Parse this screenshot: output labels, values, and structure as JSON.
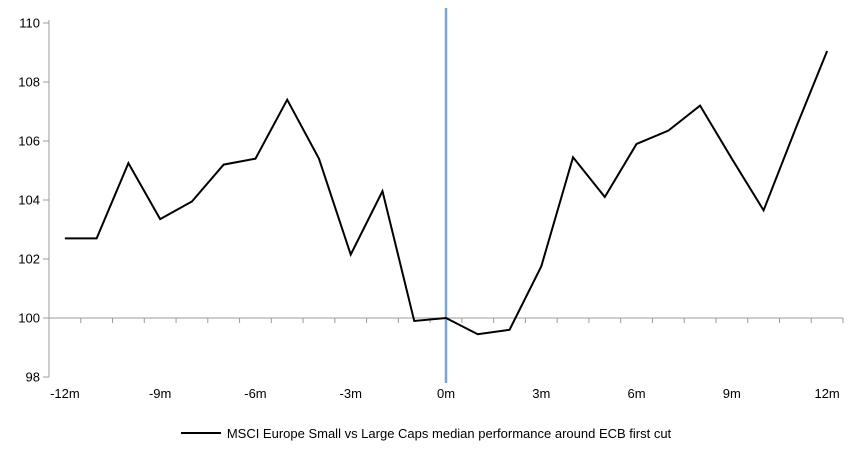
{
  "chart_data": {
    "type": "line",
    "title": "",
    "xlabel": "",
    "ylabel": "",
    "x": [
      -12,
      -11,
      -10,
      -9,
      -8,
      -7,
      -6,
      -5,
      -4,
      -3,
      -2,
      -1,
      0,
      1,
      2,
      3,
      4,
      5,
      6,
      7,
      8,
      9,
      10,
      11,
      12
    ],
    "series": [
      {
        "name": "MSCI Europe Small vs Large Caps median performance around ECB first cut",
        "color": "#000000",
        "values": [
          102.7,
          102.7,
          105.25,
          103.35,
          103.95,
          105.2,
          105.4,
          107.4,
          105.4,
          102.15,
          104.3,
          99.9,
          100.0,
          99.45,
          99.6,
          101.75,
          105.45,
          104.1,
          105.9,
          106.35,
          107.2,
          105.4,
          103.65,
          106.4,
          109.05
        ]
      }
    ],
    "x_tick_values": [
      -12,
      -9,
      -6,
      -3,
      0,
      3,
      6,
      9,
      12
    ],
    "x_tick_labels": [
      "-12m",
      "-9m",
      "-6m",
      "-3m",
      "0m",
      "3m",
      "6m",
      "9m",
      "12m"
    ],
    "y_ticks": [
      98,
      100,
      102,
      104,
      106,
      108,
      110
    ],
    "ylim": [
      98,
      110
    ],
    "x_axis_cross": 100,
    "event_line": {
      "x": 0,
      "color": "#7EA6CC"
    },
    "axis_color": "#9B9B9B",
    "grid": false,
    "legend_position": "bottom"
  }
}
